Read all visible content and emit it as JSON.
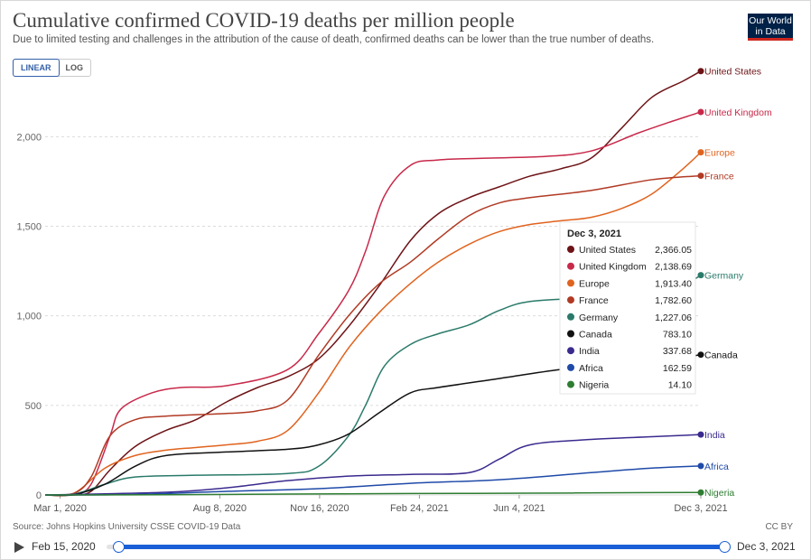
{
  "header": {
    "title": "Cumulative confirmed COVID-19 deaths per million people",
    "subtitle": "Due to limited testing and challenges in the attribution of the cause of death, confirmed deaths can be lower than the true number of deaths.",
    "logo_line1": "Our World",
    "logo_line2": "in Data"
  },
  "controls": {
    "linear_label": "LINEAR",
    "log_label": "LOG",
    "active": "LINEAR"
  },
  "footer": {
    "source": "Source: Johns Hopkins University CSSE COVID-19 Data",
    "license": "CC BY"
  },
  "timeline": {
    "start": "Feb 15, 2020",
    "end": "Dec 3, 2021"
  },
  "tooltip": {
    "title": "Dec 3, 2021",
    "rows": [
      {
        "name": "United States",
        "value": "2,366.05"
      },
      {
        "name": "United Kingdom",
        "value": "2,138.69"
      },
      {
        "name": "Europe",
        "value": "1,913.40"
      },
      {
        "name": "France",
        "value": "1,782.60"
      },
      {
        "name": "Germany",
        "value": "1,227.06"
      },
      {
        "name": "Canada",
        "value": "783.10"
      },
      {
        "name": "India",
        "value": "337.68"
      },
      {
        "name": "Africa",
        "value": "162.59"
      },
      {
        "name": "Nigeria",
        "value": "14.10"
      }
    ]
  },
  "chart_data": {
    "type": "line",
    "title": "Cumulative confirmed COVID-19 deaths per million people",
    "x_type": "date",
    "xlim": [
      "2020-02-15",
      "2021-12-03"
    ],
    "ylim": [
      0,
      2400
    ],
    "y_ticks": [
      0,
      500,
      1000,
      1500,
      2000
    ],
    "y_tick_labels": [
      "0",
      "500",
      "1,000",
      "1,500",
      "2,000"
    ],
    "x_ticks": [
      "2020-03-01",
      "2020-08-08",
      "2020-11-16",
      "2021-02-24",
      "2021-06-04",
      "2021-12-03"
    ],
    "x_tick_labels": [
      "Mar 1, 2020",
      "Aug 8, 2020",
      "Nov 16, 2020",
      "Feb 24, 2021",
      "Jun 4, 2021",
      "Dec 3, 2021"
    ],
    "grid": "horizontal dashed",
    "legend": "labels at line ends (right)",
    "series": [
      {
        "name": "United States",
        "color": "#6d1316",
        "x": [
          "2020-02-15",
          "2020-03-15",
          "2020-04-01",
          "2020-04-20",
          "2020-05-15",
          "2020-06-15",
          "2020-07-15",
          "2020-08-15",
          "2020-09-15",
          "2020-10-15",
          "2020-11-15",
          "2020-12-15",
          "2021-01-15",
          "2021-02-15",
          "2021-03-15",
          "2021-04-15",
          "2021-05-15",
          "2021-06-15",
          "2021-07-15",
          "2021-08-15",
          "2021-09-15",
          "2021-10-15",
          "2021-11-15",
          "2021-12-03"
        ],
        "y": [
          0,
          0,
          20,
          140,
          270,
          360,
          420,
          520,
          600,
          660,
          760,
          940,
          1170,
          1420,
          1570,
          1660,
          1720,
          1780,
          1820,
          1880,
          2050,
          2220,
          2310,
          2366
        ]
      },
      {
        "name": "United Kingdom",
        "color": "#c8294a",
        "x": [
          "2020-02-15",
          "2020-03-15",
          "2020-04-01",
          "2020-04-20",
          "2020-05-01",
          "2020-06-01",
          "2020-07-01",
          "2020-08-15",
          "2020-10-15",
          "2020-11-15",
          "2020-12-15",
          "2021-01-01",
          "2021-01-20",
          "2021-02-15",
          "2021-03-15",
          "2021-05-01",
          "2021-07-01",
          "2021-08-15",
          "2021-10-01",
          "2021-11-01",
          "2021-12-03"
        ],
        "y": [
          0,
          5,
          60,
          330,
          480,
          570,
          600,
          610,
          700,
          900,
          1140,
          1360,
          1670,
          1840,
          1870,
          1880,
          1890,
          1920,
          2020,
          2080,
          2138
        ]
      },
      {
        "name": "Europe",
        "color": "#e0631f",
        "x": [
          "2020-02-15",
          "2020-03-15",
          "2020-04-15",
          "2020-05-15",
          "2020-06-15",
          "2020-07-15",
          "2020-08-15",
          "2020-09-15",
          "2020-10-15",
          "2020-11-15",
          "2020-12-15",
          "2021-01-15",
          "2021-02-15",
          "2021-03-15",
          "2021-04-15",
          "2021-05-15",
          "2021-06-15",
          "2021-07-15",
          "2021-08-15",
          "2021-09-15",
          "2021-10-15",
          "2021-11-15",
          "2021-12-03"
        ],
        "y": [
          0,
          10,
          150,
          220,
          250,
          265,
          280,
          300,
          360,
          570,
          820,
          1020,
          1180,
          1300,
          1400,
          1470,
          1510,
          1530,
          1550,
          1600,
          1680,
          1820,
          1913
        ]
      },
      {
        "name": "France",
        "color": "#b13a24",
        "x": [
          "2020-02-15",
          "2020-03-15",
          "2020-04-01",
          "2020-04-20",
          "2020-05-15",
          "2020-06-15",
          "2020-08-15",
          "2020-09-15",
          "2020-10-15",
          "2020-11-15",
          "2020-12-15",
          "2021-01-15",
          "2021-02-15",
          "2021-03-15",
          "2021-04-15",
          "2021-05-15",
          "2021-06-15",
          "2021-08-15",
          "2021-10-15",
          "2021-12-03"
        ],
        "y": [
          0,
          10,
          100,
          330,
          420,
          440,
          455,
          470,
          530,
          780,
          1000,
          1180,
          1300,
          1430,
          1560,
          1630,
          1660,
          1700,
          1760,
          1782
        ]
      },
      {
        "name": "Germany",
        "color": "#2a7a6a",
        "x": [
          "2020-02-15",
          "2020-03-15",
          "2020-04-15",
          "2020-05-15",
          "2020-07-15",
          "2020-10-15",
          "2020-11-15",
          "2020-12-15",
          "2021-01-01",
          "2021-01-20",
          "2021-02-15",
          "2021-03-15",
          "2021-04-15",
          "2021-05-15",
          "2021-06-15",
          "2021-08-15",
          "2021-10-15",
          "2021-11-15",
          "2021-12-03"
        ],
        "y": [
          0,
          5,
          60,
          100,
          110,
          120,
          160,
          330,
          500,
          720,
          840,
          900,
          950,
          1030,
          1080,
          1100,
          1120,
          1170,
          1227
        ]
      },
      {
        "name": "Canada",
        "color": "#111111",
        "x": [
          "2020-02-15",
          "2020-03-15",
          "2020-04-15",
          "2020-05-15",
          "2020-06-15",
          "2020-08-15",
          "2020-10-15",
          "2020-11-15",
          "2020-12-15",
          "2021-01-15",
          "2021-02-15",
          "2021-03-15",
          "2021-05-15",
          "2021-07-15",
          "2021-09-15",
          "2021-11-15",
          "2021-12-03"
        ],
        "y": [
          0,
          2,
          60,
          160,
          220,
          240,
          255,
          280,
          340,
          460,
          570,
          600,
          650,
          700,
          735,
          770,
          783
        ]
      },
      {
        "name": "India",
        "color": "#3b2a8e",
        "x": [
          "2020-02-15",
          "2020-06-15",
          "2020-08-15",
          "2020-10-15",
          "2020-12-15",
          "2021-02-15",
          "2021-04-15",
          "2021-05-15",
          "2021-06-15",
          "2021-08-15",
          "2021-10-15",
          "2021-12-03"
        ],
        "y": [
          0,
          15,
          40,
          80,
          105,
          115,
          125,
          200,
          280,
          310,
          325,
          337
        ]
      },
      {
        "name": "Africa",
        "color": "#1f4aa8",
        "x": [
          "2020-02-15",
          "2020-05-15",
          "2020-08-15",
          "2020-11-15",
          "2021-02-15",
          "2021-05-15",
          "2021-08-15",
          "2021-10-15",
          "2021-12-03"
        ],
        "y": [
          0,
          3,
          20,
          35,
          65,
          85,
          125,
          150,
          162
        ]
      },
      {
        "name": "Nigeria",
        "color": "#2e7d32",
        "x": [
          "2020-02-15",
          "2020-06-15",
          "2020-10-15",
          "2021-02-15",
          "2021-06-15",
          "2021-10-15",
          "2021-12-03"
        ],
        "y": [
          0,
          1,
          5,
          8,
          10,
          13,
          14
        ]
      }
    ]
  }
}
